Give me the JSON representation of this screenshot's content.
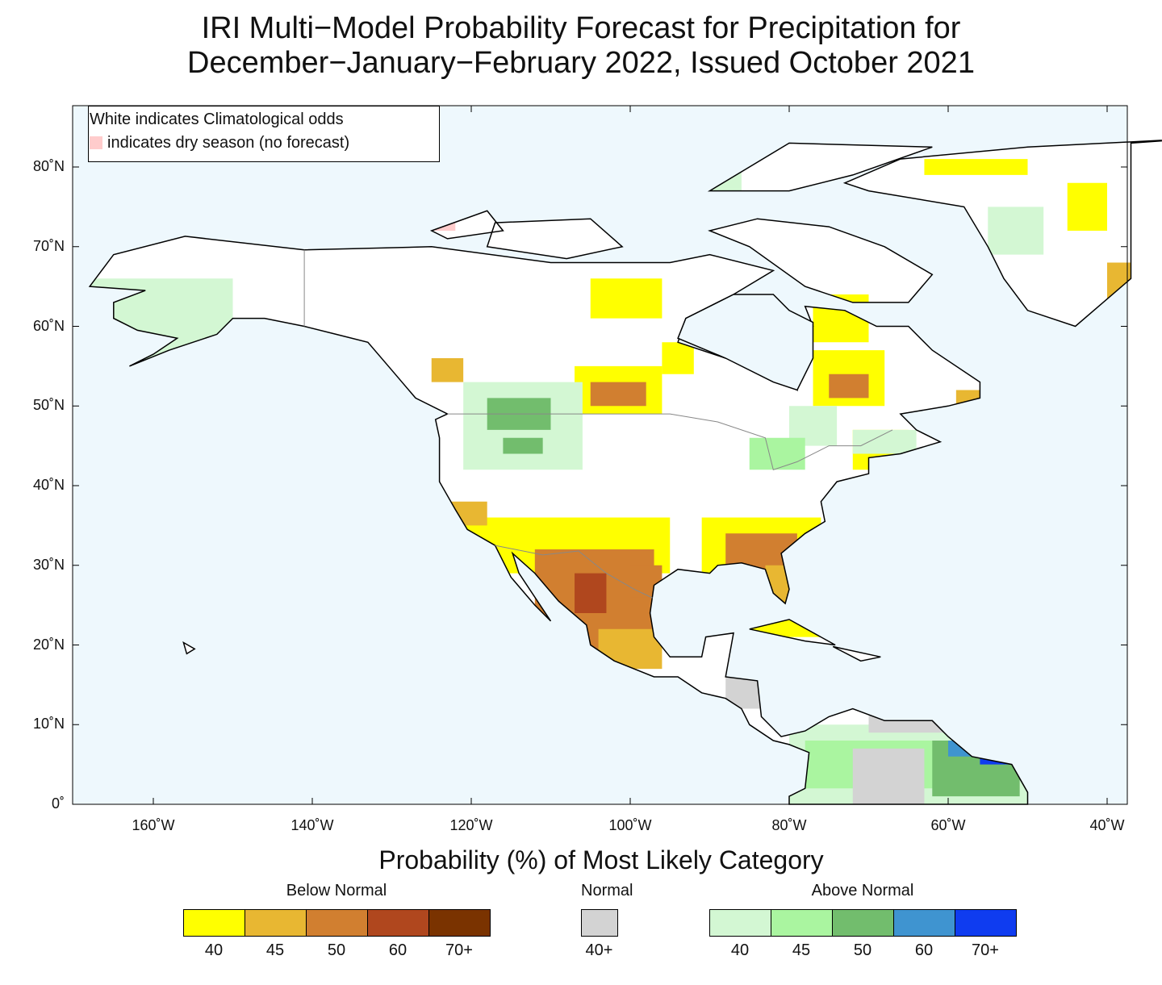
{
  "title": [
    "IRI Multi−Model Probability Forecast for Precipitation for",
    "December−January−February 2022, Issued October 2021"
  ],
  "note": {
    "line1": "White indicates Climatological odds",
    "line2": "indicates dry season (no forecast)",
    "dry_color": "#ffcccc"
  },
  "axes": {
    "lat_ticks": [
      "80˚N",
      "70˚N",
      "60˚N",
      "50˚N",
      "40˚N",
      "30˚N",
      "20˚N",
      "10˚N",
      "0˚"
    ],
    "lon_ticks": [
      "160˚W",
      "140˚W",
      "120˚W",
      "100˚W",
      "80˚W",
      "60˚W",
      "40˚W"
    ]
  },
  "legend": {
    "title": "Probability (%) of Most Likely Category",
    "below": {
      "label": "Below Normal",
      "bins": [
        {
          "v": "40",
          "c": "#ffff00"
        },
        {
          "v": "45",
          "c": "#e8b732"
        },
        {
          "v": "50",
          "c": "#d17f30"
        },
        {
          "v": "60",
          "c": "#b0471e"
        },
        {
          "v": "70+",
          "c": "#7a3300"
        }
      ]
    },
    "normal": {
      "label": "Normal",
      "bins": [
        {
          "v": "40+",
          "c": "#d3d3d3"
        }
      ]
    },
    "above": {
      "label": "Above Normal",
      "bins": [
        {
          "v": "40",
          "c": "#d3f7d3"
        },
        {
          "v": "45",
          "c": "#aaf5a0"
        },
        {
          "v": "50",
          "c": "#72bd6d"
        },
        {
          "v": "60",
          "c": "#3f94d0"
        },
        {
          "v": "70+",
          "c": "#0f3cf0"
        }
      ]
    }
  },
  "colors": {
    "ocean": "#eef8fd",
    "land": "#ffffff"
  }
}
